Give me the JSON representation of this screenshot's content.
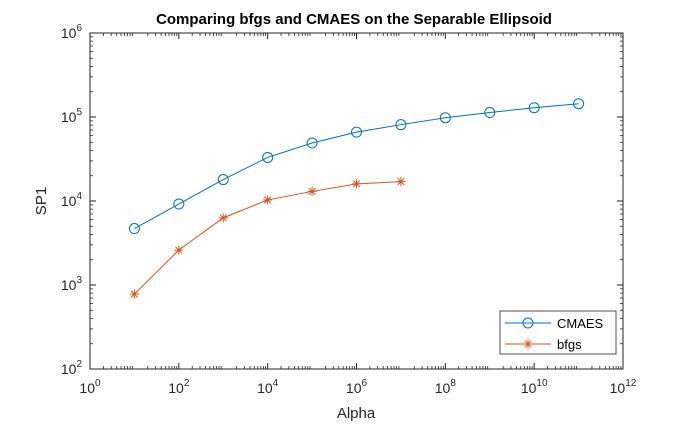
{
  "chart_data": {
    "type": "line",
    "title": "Comparing bfgs and CMAES on the Separable Ellipsoid",
    "xlabel": "Alpha",
    "ylabel": "SP1",
    "xscale": "log",
    "yscale": "log",
    "xlim": [
      1,
      1000000000000
    ],
    "ylim": [
      100,
      1000000
    ],
    "grid": false,
    "legend_position": "bottom-right",
    "x_ticks": [
      {
        "base": "10",
        "exp": "0",
        "value": 1
      },
      {
        "base": "10",
        "exp": "2",
        "value": 100
      },
      {
        "base": "10",
        "exp": "4",
        "value": 10000
      },
      {
        "base": "10",
        "exp": "6",
        "value": 1000000
      },
      {
        "base": "10",
        "exp": "8",
        "value": 100000000
      },
      {
        "base": "10",
        "exp": "10",
        "value": 10000000000
      },
      {
        "base": "10",
        "exp": "12",
        "value": 1000000000000
      }
    ],
    "y_ticks": [
      {
        "base": "10",
        "exp": "2",
        "value": 100
      },
      {
        "base": "10",
        "exp": "3",
        "value": 1000
      },
      {
        "base": "10",
        "exp": "4",
        "value": 10000
      },
      {
        "base": "10",
        "exp": "5",
        "value": 100000
      },
      {
        "base": "10",
        "exp": "6",
        "value": 1000000
      }
    ],
    "series": [
      {
        "name": "CMAES",
        "color": "#0072BD",
        "marker": "circle",
        "x": [
          10,
          100,
          1000,
          10000,
          100000,
          1000000,
          10000000,
          100000000,
          1000000000,
          10000000000,
          100000000000
        ],
        "y": [
          4700,
          9200,
          18000,
          33000,
          49000,
          66000,
          81000,
          98000,
          113000,
          129000,
          144000
        ]
      },
      {
        "name": "bfgs",
        "color": "#D95319",
        "marker": "asterisk",
        "x": [
          10,
          100,
          1000,
          10000,
          100000,
          1000000,
          10000000
        ],
        "y": [
          780,
          2600,
          6300,
          10300,
          13000,
          16000,
          17000
        ]
      }
    ]
  }
}
